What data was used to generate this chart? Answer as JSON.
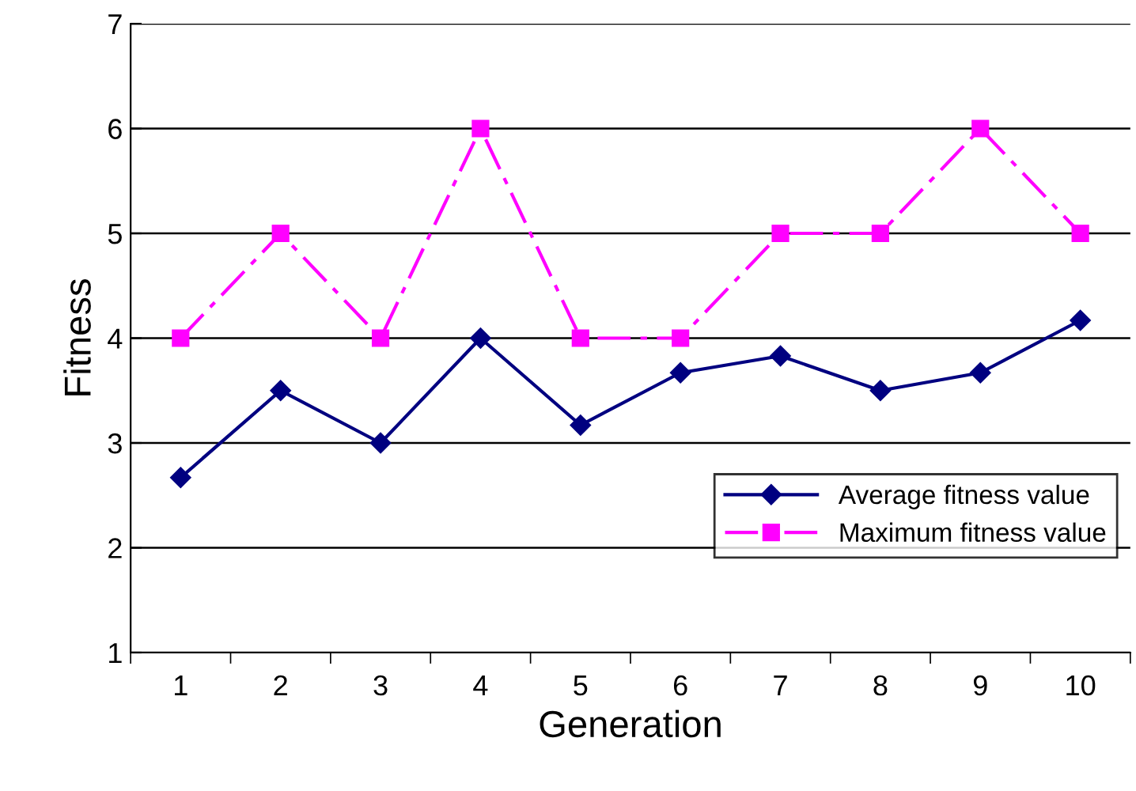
{
  "chart_data": {
    "type": "line",
    "xlabel": "Generation",
    "ylabel": "Fitness",
    "categories": [
      "1",
      "2",
      "3",
      "4",
      "5",
      "6",
      "7",
      "8",
      "9",
      "10"
    ],
    "series": [
      {
        "name": "Average fitness value",
        "color": "#000080",
        "marker": "diamond",
        "line_style": "solid",
        "values": [
          2.67,
          3.5,
          3.0,
          4.0,
          3.17,
          3.67,
          3.83,
          3.5,
          3.67,
          4.17
        ]
      },
      {
        "name": "Maximum fitness value",
        "color": "#ff00ff",
        "marker": "square",
        "line_style": "dashed",
        "values": [
          4,
          5,
          4,
          6,
          4,
          4,
          5,
          5,
          6,
          5
        ]
      }
    ],
    "ylim": [
      1,
      7
    ],
    "yticks": [
      1,
      2,
      3,
      4,
      5,
      6,
      7
    ],
    "grid": "y",
    "legend": "bottom right"
  }
}
